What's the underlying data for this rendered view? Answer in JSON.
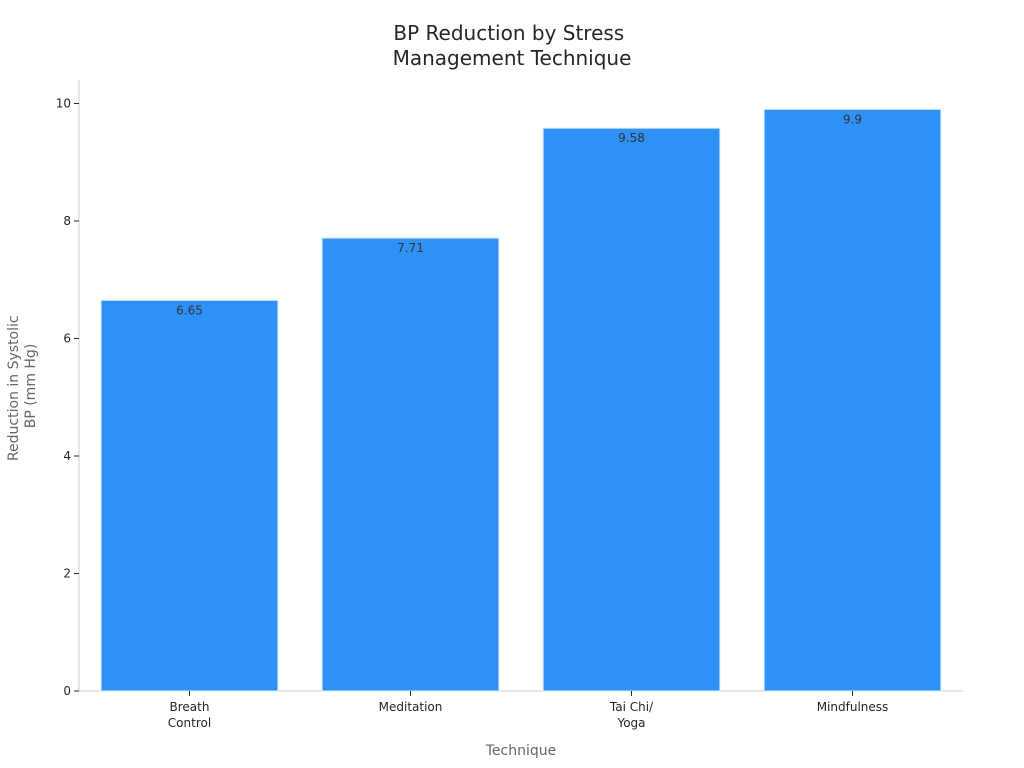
{
  "chart_data": {
    "type": "bar",
    "title": [
      "BP Reduction by Stress",
      "Management Technique"
    ],
    "xlabel": "Technique",
    "ylabel": [
      "Reduction in Systolic",
      "BP (mm Hg)"
    ],
    "categories": [
      [
        "Breath",
        "Control"
      ],
      [
        "Meditation"
      ],
      [
        "Tai Chi/",
        "Yoga"
      ],
      [
        "Mindfulness"
      ]
    ],
    "values": [
      6.65,
      7.71,
      9.58,
      9.9
    ],
    "data_labels": [
      "6.65",
      "7.71",
      "9.58",
      "9.9"
    ],
    "ylim": [
      0,
      10.4
    ],
    "yticks": [
      0,
      2,
      4,
      6,
      8,
      10
    ],
    "ytick_labels": [
      "0",
      "2",
      "4",
      "6",
      "8",
      "10"
    ],
    "bar_color": "#2E91F8",
    "grid": false,
    "legend": "none"
  }
}
